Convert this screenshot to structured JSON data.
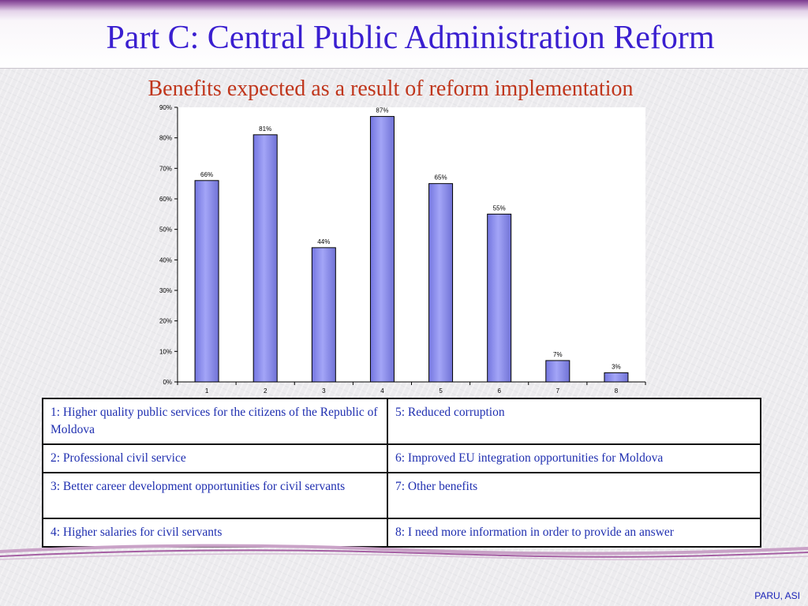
{
  "slide": {
    "title": "Part C: Central Public Administration Reform",
    "footer": "PARU, ASI"
  },
  "chart_data": {
    "type": "bar",
    "title": "Benefits expected as a result of reform implementation",
    "categories": [
      "1",
      "2",
      "3",
      "4",
      "5",
      "6",
      "7",
      "8"
    ],
    "values": [
      66,
      81,
      44,
      87,
      65,
      55,
      7,
      3
    ],
    "data_labels": [
      "66%",
      "81%",
      "44%",
      "87%",
      "65%",
      "55%",
      "7%",
      "3%"
    ],
    "yticks": [
      "0%",
      "10%",
      "20%",
      "30%",
      "40%",
      "50%",
      "60%",
      "70%",
      "80%",
      "90%"
    ],
    "ylim": [
      0,
      90
    ],
    "xlabel": "",
    "ylabel": "",
    "grid": false,
    "bar_color": "#8f91ee"
  },
  "legend_table": {
    "rows": [
      [
        "1: Higher quality public services for the citizens of the Republic of Moldova",
        "5: Reduced corruption"
      ],
      [
        "2: Professional civil service",
        "6: Improved EU integration opportunities for Moldova"
      ],
      [
        "3: Better career development opportunities for civil servants",
        "7: Other benefits"
      ],
      [
        "4: Higher salaries for civil servants",
        "8: I need more information in order to provide an answer"
      ]
    ]
  }
}
